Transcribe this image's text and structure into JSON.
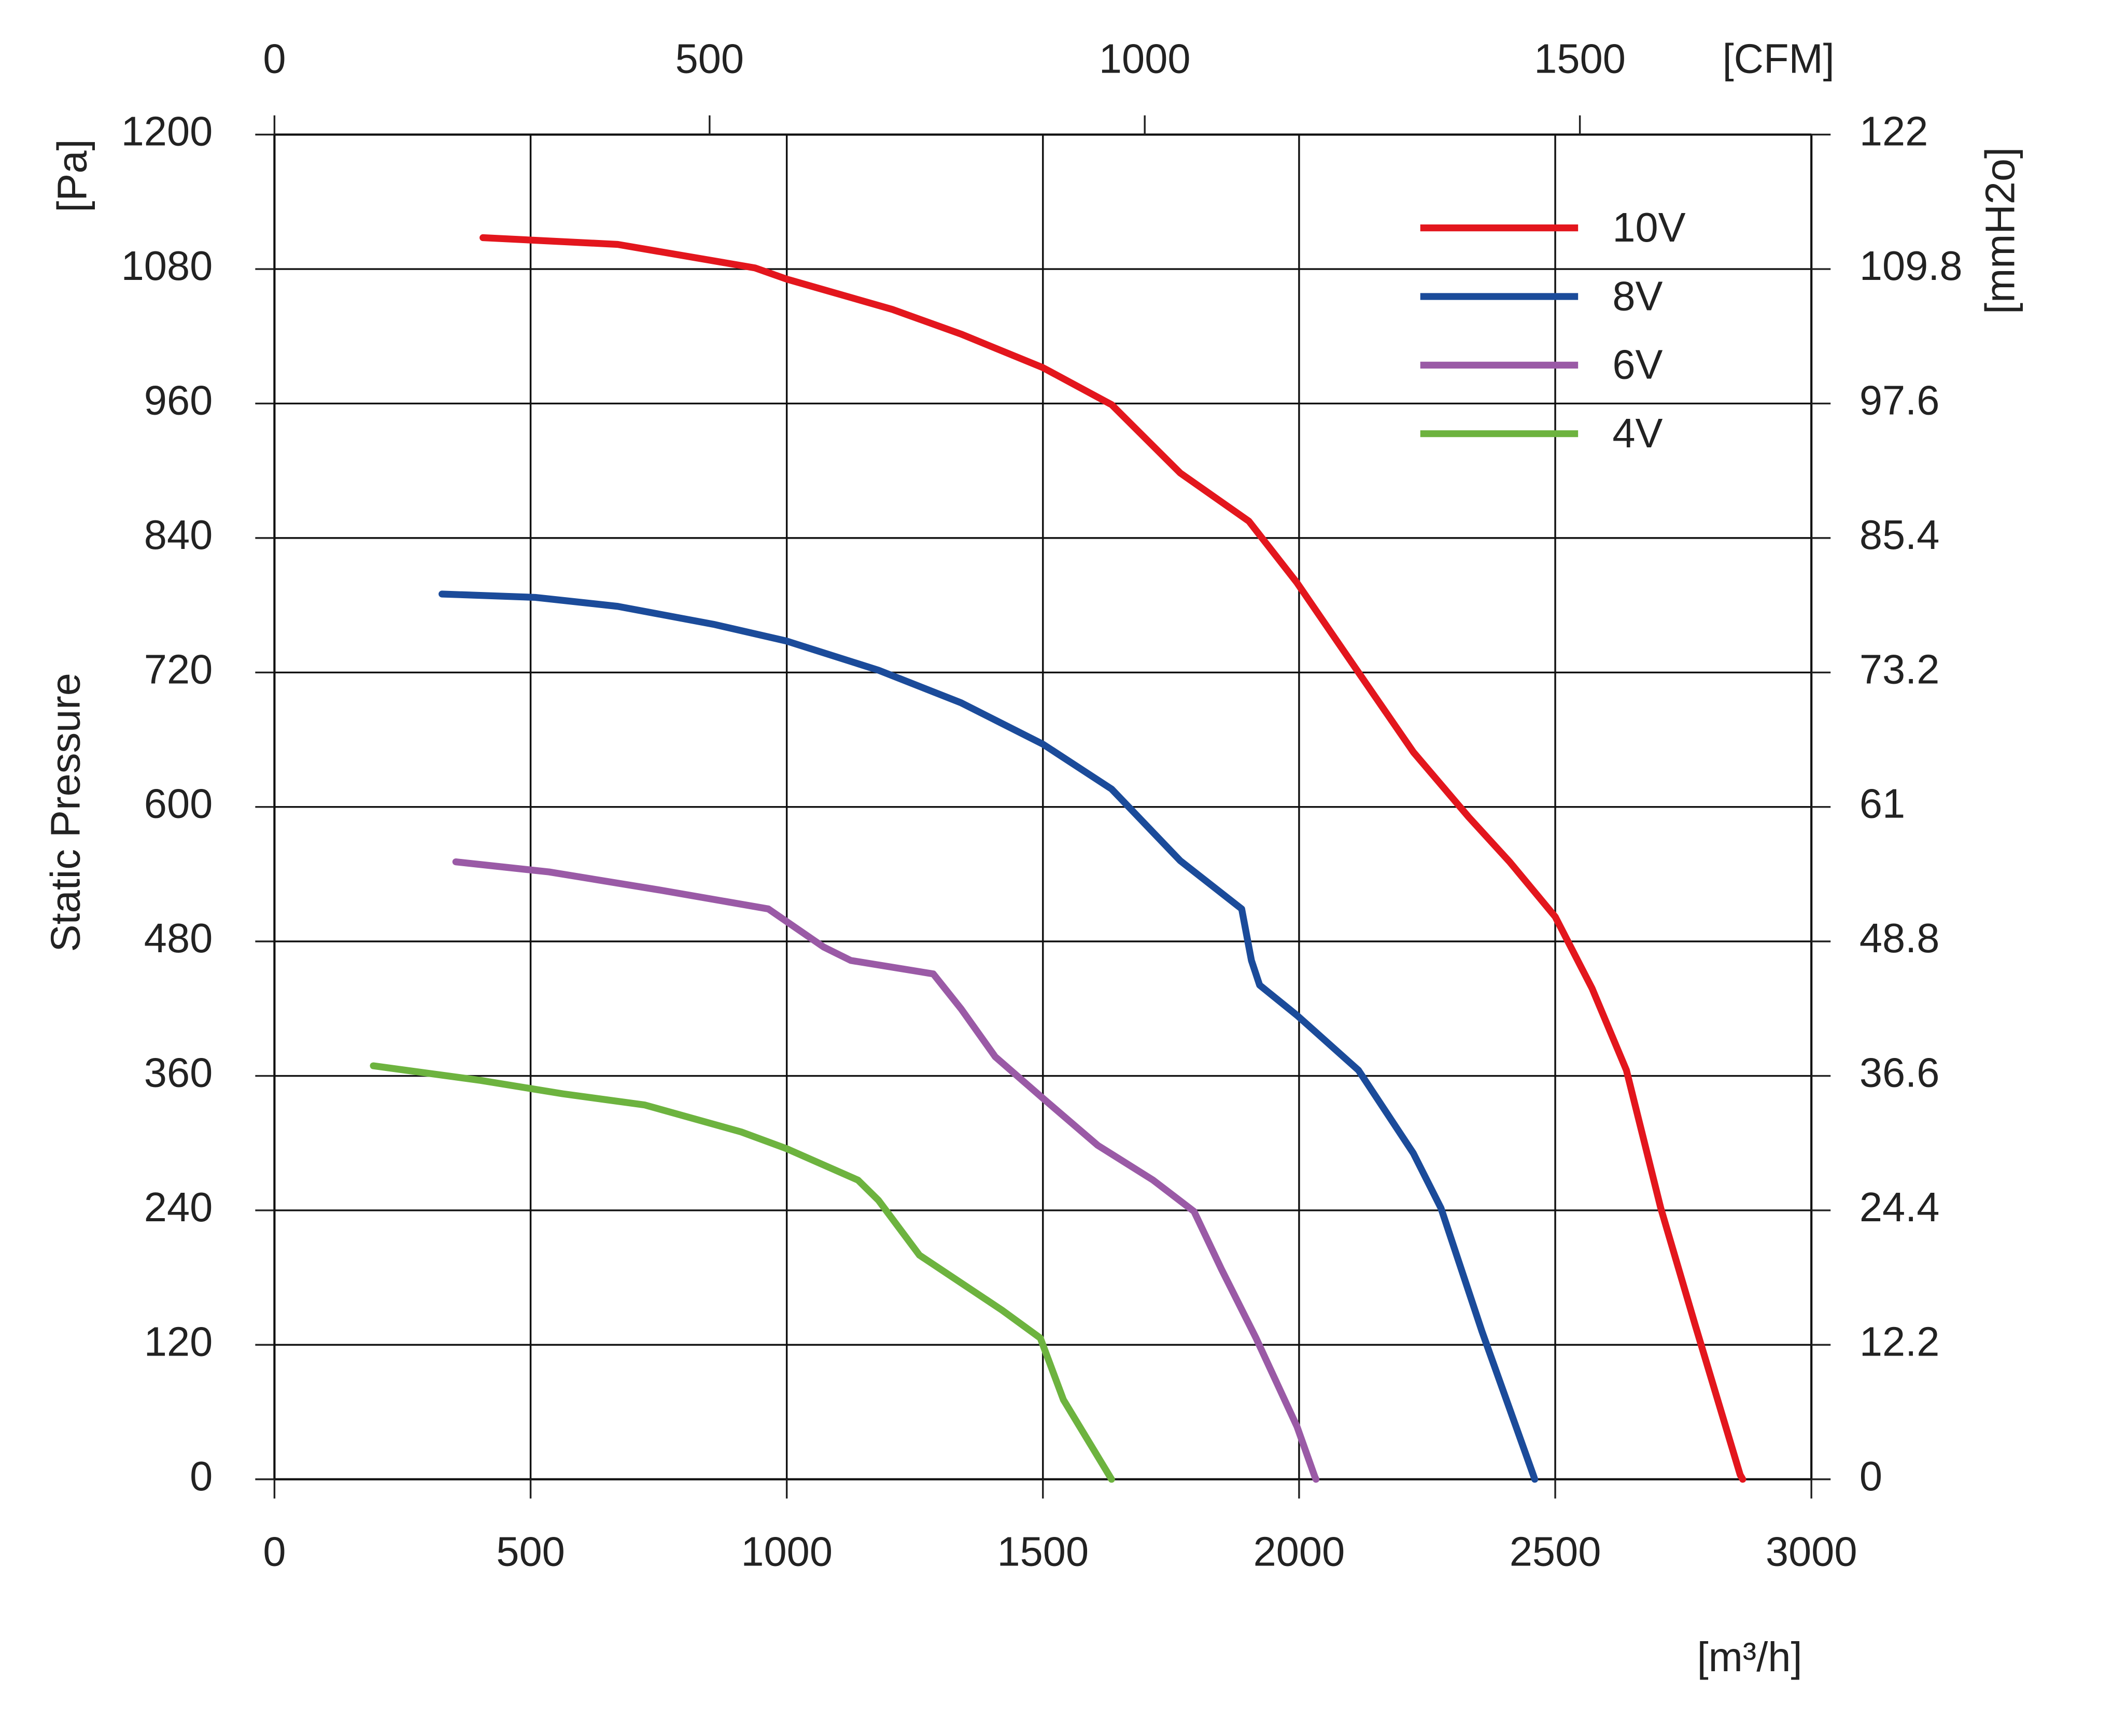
{
  "chart_data": {
    "type": "line",
    "x_label": "[m³/h]",
    "y_label": "Static Pressure",
    "y_unit": "[Pa]",
    "x2_label": "[CFM]",
    "y2_label": "[mmH2o]",
    "xlim": [
      0,
      3000
    ],
    "xticks": [
      0,
      500,
      1000,
      1500,
      2000,
      2500,
      3000
    ],
    "ylim": [
      0,
      1200
    ],
    "yticks": [
      0,
      120,
      240,
      360,
      480,
      600,
      720,
      840,
      960,
      1080,
      1200
    ],
    "x2lim": [
      0,
      1766
    ],
    "x2ticks": [
      0,
      500,
      1000,
      1500
    ],
    "y2lim": [
      0,
      122
    ],
    "y2ticks": [
      0,
      12.2,
      24.4,
      36.6,
      48.8,
      61,
      73.2,
      85.4,
      97.6,
      109.8,
      122
    ],
    "grid": true,
    "legend": "upper right",
    "series": [
      {
        "name": "10V",
        "color": "#e3161d",
        "x": [
          407,
          670,
          938,
          1000,
          1206,
          1340,
          1500,
          1634,
          1768,
          1902,
          1996,
          2116,
          2223,
          2331,
          2411,
          2500,
          2572,
          2639,
          2706,
          2773,
          2861,
          2866
        ],
        "values": [
          1108,
          1102,
          1081,
          1071,
          1044,
          1022,
          992,
          959,
          898,
          855,
          800,
          720,
          649,
          591,
          551,
          502,
          438,
          365,
          242,
          138,
          4,
          0
        ]
      },
      {
        "name": "8V",
        "color": "#1b4b9a",
        "x": [
          327,
          509,
          670,
          857,
          1000,
          1179,
          1340,
          1500,
          1634,
          1768,
          1888,
          1907,
          1923,
          1996,
          2116,
          2223,
          2277,
          2357,
          2457,
          2460
        ],
        "values": [
          790,
          787,
          779,
          763,
          748,
          722,
          693,
          656,
          616,
          552,
          509,
          463,
          441,
          414,
          365,
          291,
          242,
          132,
          4,
          0
        ]
      },
      {
        "name": "6V",
        "color": "#9a5aa6",
        "x": [
          354,
          536,
          750,
          964,
          1072,
          1125,
          1286,
          1340,
          1407,
          1500,
          1607,
          1715,
          1795,
          1849,
          1916,
          1996,
          2031,
          2033
        ],
        "values": [
          551,
          542,
          526,
          509,
          475,
          463,
          451,
          420,
          377,
          340,
          298,
          267,
          239,
          187,
          126,
          47,
          2,
          0
        ]
      },
      {
        "name": "4V",
        "color": "#6db33f",
        "x": [
          193,
          402,
          563,
          723,
          911,
          1000,
          1139,
          1179,
          1259,
          1420,
          1495,
          1540,
          1634
        ],
        "values": [
          369,
          356,
          344,
          334,
          310,
          295,
          267,
          249,
          200,
          151,
          126,
          71,
          0
        ]
      }
    ]
  }
}
